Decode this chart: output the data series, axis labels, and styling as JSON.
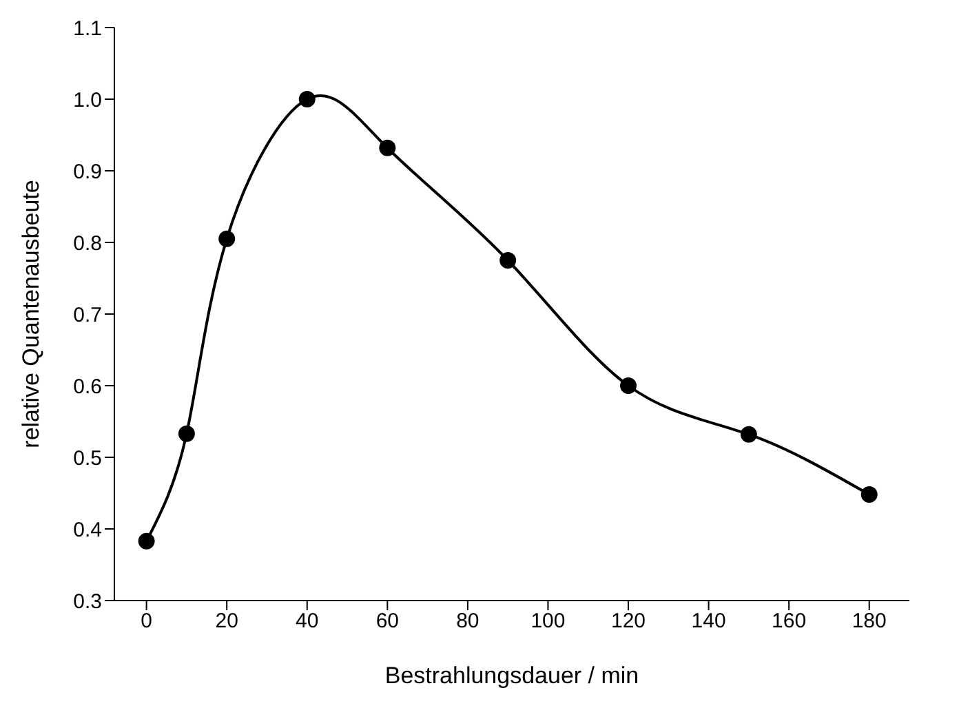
{
  "chart_data": {
    "type": "line",
    "xlabel": "Bestrahlungsdauer /  min",
    "ylabel": "relative Quantenausbeute",
    "x": [
      0,
      10,
      20,
      40,
      60,
      90,
      120,
      150,
      180
    ],
    "series": [
      {
        "color": "#000000",
        "values": [
          0.383,
          0.533,
          0.805,
          1.0,
          0.932,
          0.775,
          0.6,
          0.532,
          0.448
        ]
      }
    ],
    "xlim": [
      -8,
      190
    ],
    "xticks": [
      0,
      20,
      40,
      60,
      80,
      100,
      120,
      140,
      160,
      180
    ],
    "ylim": [
      0.3,
      1.1
    ],
    "yticks": [
      0.3,
      0.4,
      0.5,
      0.6,
      0.7,
      0.8,
      0.9,
      {
        "value": 1.0,
        "label": "1.0"
      },
      1.1
    ],
    "marker": "circle",
    "line_style": "solid",
    "grid": false,
    "legend": false
  }
}
